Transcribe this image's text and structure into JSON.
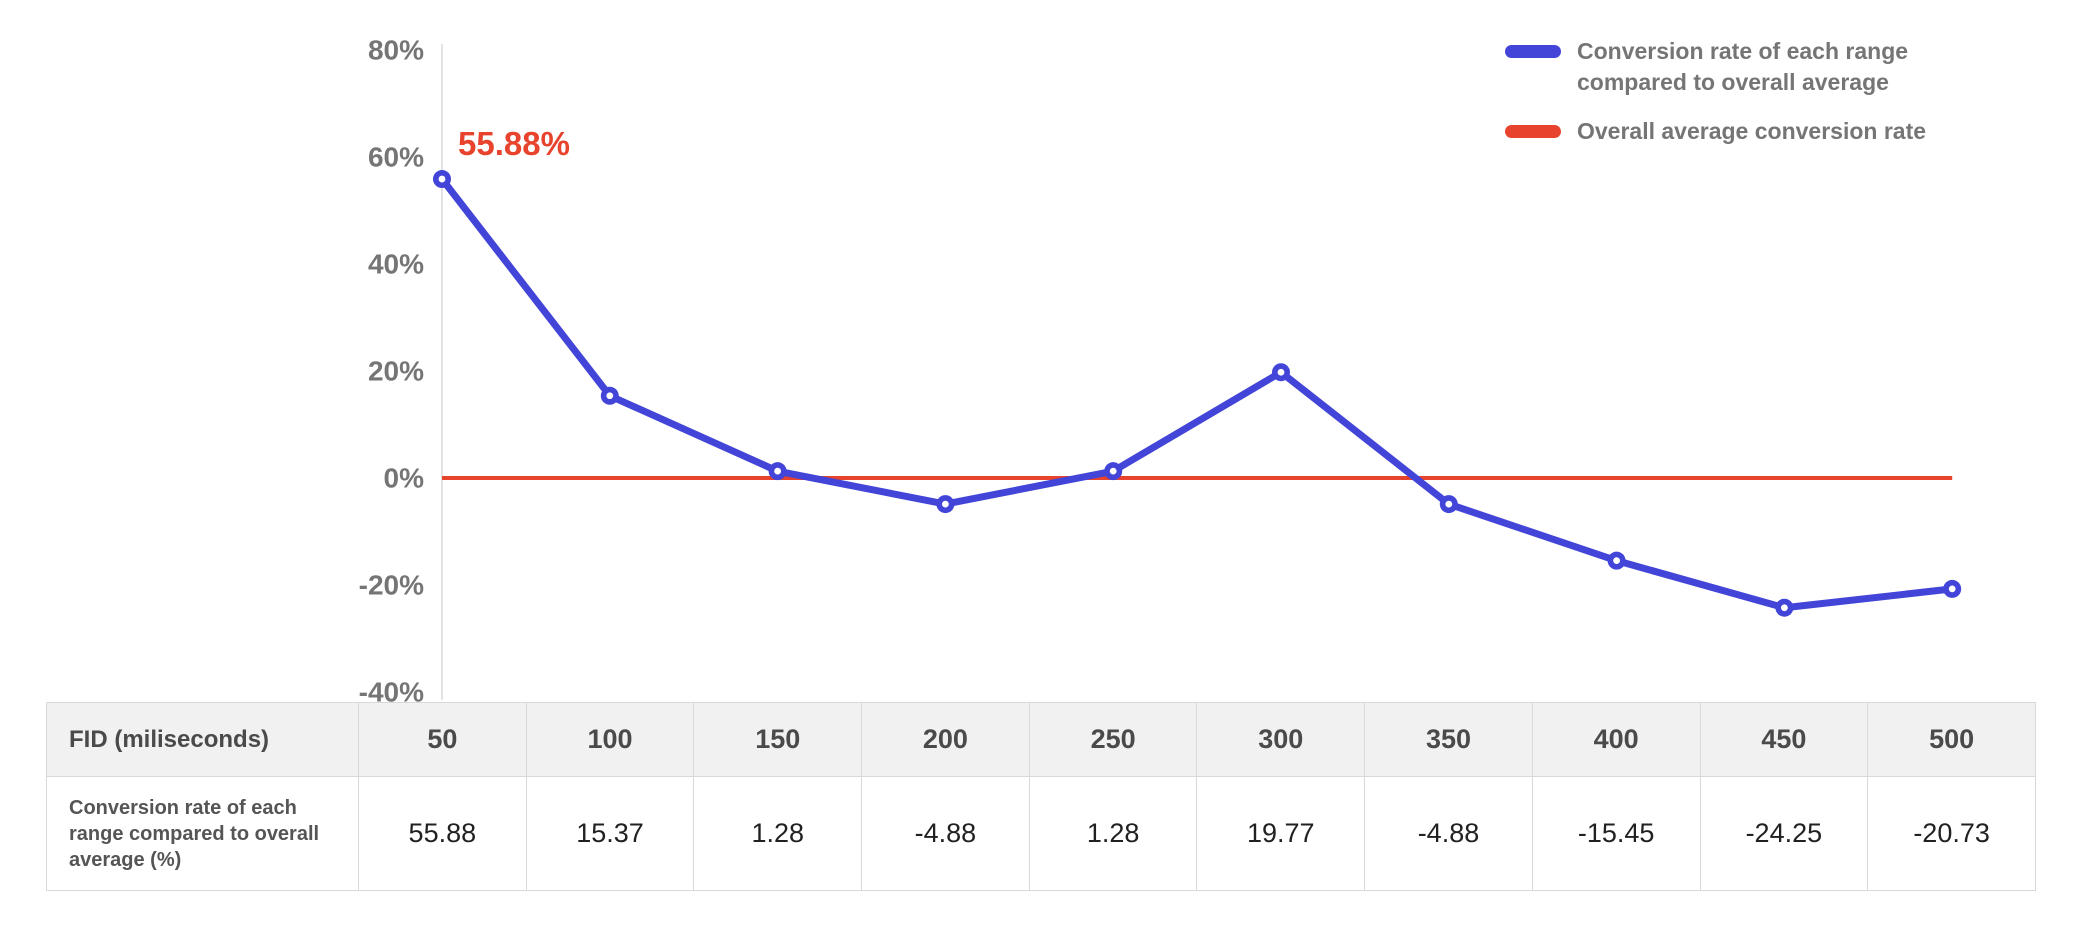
{
  "chart_data": {
    "type": "line",
    "x": [
      50,
      100,
      150,
      200,
      250,
      300,
      350,
      400,
      450,
      500
    ],
    "series": [
      {
        "name": "Conversion rate of each range compared to overall average",
        "values": [
          55.88,
          15.37,
          1.28,
          -4.88,
          1.28,
          19.77,
          -4.88,
          -15.45,
          -24.25,
          -20.73
        ],
        "color": "#4245d8"
      },
      {
        "name": "Overall average conversion rate",
        "values": [
          0,
          0,
          0,
          0,
          0,
          0,
          0,
          0,
          0,
          0
        ],
        "color": "#e8432c"
      }
    ],
    "ylim": [
      -40,
      80
    ],
    "ytick_step": 20,
    "ytick_labels": [
      "80%",
      "60%",
      "40%",
      "20%",
      "0%",
      "-20%",
      "-40%"
    ],
    "annotation": {
      "text": "55.88%",
      "x": 50,
      "y": 55.88,
      "color": "#e8432c"
    },
    "grid": false,
    "legend_position": "top-right",
    "xlabel": "FID (miliseconds)",
    "ylabel": ""
  },
  "legend": {
    "items": [
      {
        "label": "Conversion rate of each range compared to overall average",
        "color": "#4245d8"
      },
      {
        "label": "Overall average conversion rate",
        "color": "#e8432c"
      }
    ]
  },
  "table": {
    "header_label": "FID (miliseconds)",
    "header_values": [
      "50",
      "100",
      "150",
      "200",
      "250",
      "300",
      "350",
      "400",
      "450",
      "500"
    ],
    "row_label": "Conversion rate of each range compared to overall average (%)",
    "row_values": [
      "55.88",
      "15.37",
      "1.28",
      "-4.88",
      "1.28",
      "19.77",
      "-4.88",
      "-15.45",
      "-24.25",
      "-20.73"
    ]
  }
}
